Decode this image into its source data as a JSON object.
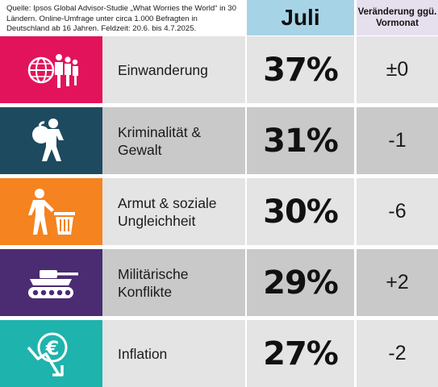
{
  "header": {
    "source": "Quelle: Ipsos Global Advisor-Studie „What Worries the World“ in 30 Ländern. Online-Umfrage unter circa 1.000 Befragten in Deutschland ab 16 Jahren. Feldzeit: 20.6. bis 4.7.2025.",
    "month": "Juli",
    "change": "Veränderung ggü. Vormonat"
  },
  "colors": {
    "magenta": "#e3135b",
    "navy": "#1e4a5f",
    "orange": "#f5831f",
    "purple": "#4b2b72",
    "teal": "#1fb3ad",
    "header_month_bg": "#a7d3e6",
    "header_change_bg": "#e6e0ee"
  },
  "chart_data": {
    "type": "table",
    "columns": [
      "Juli",
      "Veränderung ggü. Vormonat"
    ],
    "rows": [
      {
        "label": "Einwanderung",
        "value": "37%",
        "change": "±0",
        "value_num": 37,
        "change_num": 0,
        "icon": "migration-icon",
        "color": "#e3135b"
      },
      {
        "label": "Kriminalität &\nGewalt",
        "value": "31%",
        "change": "-1",
        "value_num": 31,
        "change_num": -1,
        "icon": "thief-icon",
        "color": "#1e4a5f"
      },
      {
        "label": "Armut & soziale\nUngleichheit",
        "value": "30%",
        "change": "-6",
        "value_num": 30,
        "change_num": -6,
        "icon": "poverty-icon",
        "color": "#f5831f"
      },
      {
        "label": "Militärische\nKonflikte",
        "value": "29%",
        "change": "+2",
        "value_num": 29,
        "change_num": 2,
        "icon": "tank-icon",
        "color": "#4b2b72"
      },
      {
        "label": "Inflation",
        "value": "27%",
        "change": "-2",
        "value_num": 27,
        "change_num": -2,
        "icon": "euro-decline-icon",
        "color": "#1fb3ad"
      }
    ]
  }
}
